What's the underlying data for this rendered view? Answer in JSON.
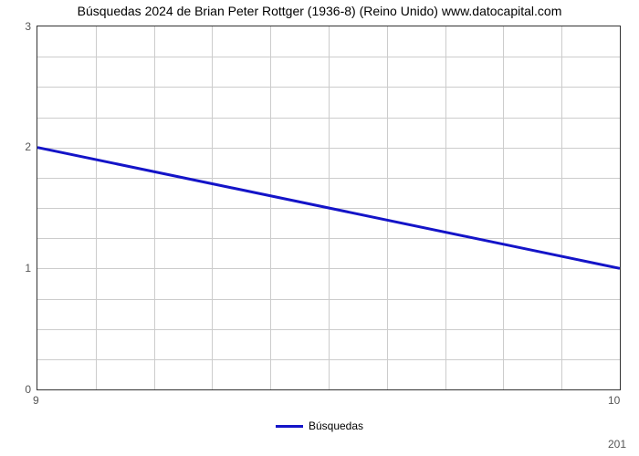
{
  "chart": {
    "type": "line",
    "title": "Búsquedas 2024 de Brian Peter Rottger (1936-8) (Reino Unido) www.datocapital.com",
    "title_fontsize": 14,
    "background_color": "#ffffff",
    "plot_border_color": "#333333",
    "grid_color": "#cccccc",
    "ylim": [
      0,
      3
    ],
    "yticks": [
      0,
      1,
      2,
      3
    ],
    "ygrid_every": 0.25,
    "xlim": [
      9,
      10
    ],
    "xticks": [
      9,
      10
    ],
    "xgrid_count": 10,
    "sublabel": "201",
    "x": [
      9,
      10
    ],
    "y": [
      2.0,
      1.0
    ],
    "line_color": "#1414c8",
    "line_width": 3,
    "legend_label": "Búsquedas",
    "tick_fontsize": 12,
    "tick_color": "#555555"
  }
}
